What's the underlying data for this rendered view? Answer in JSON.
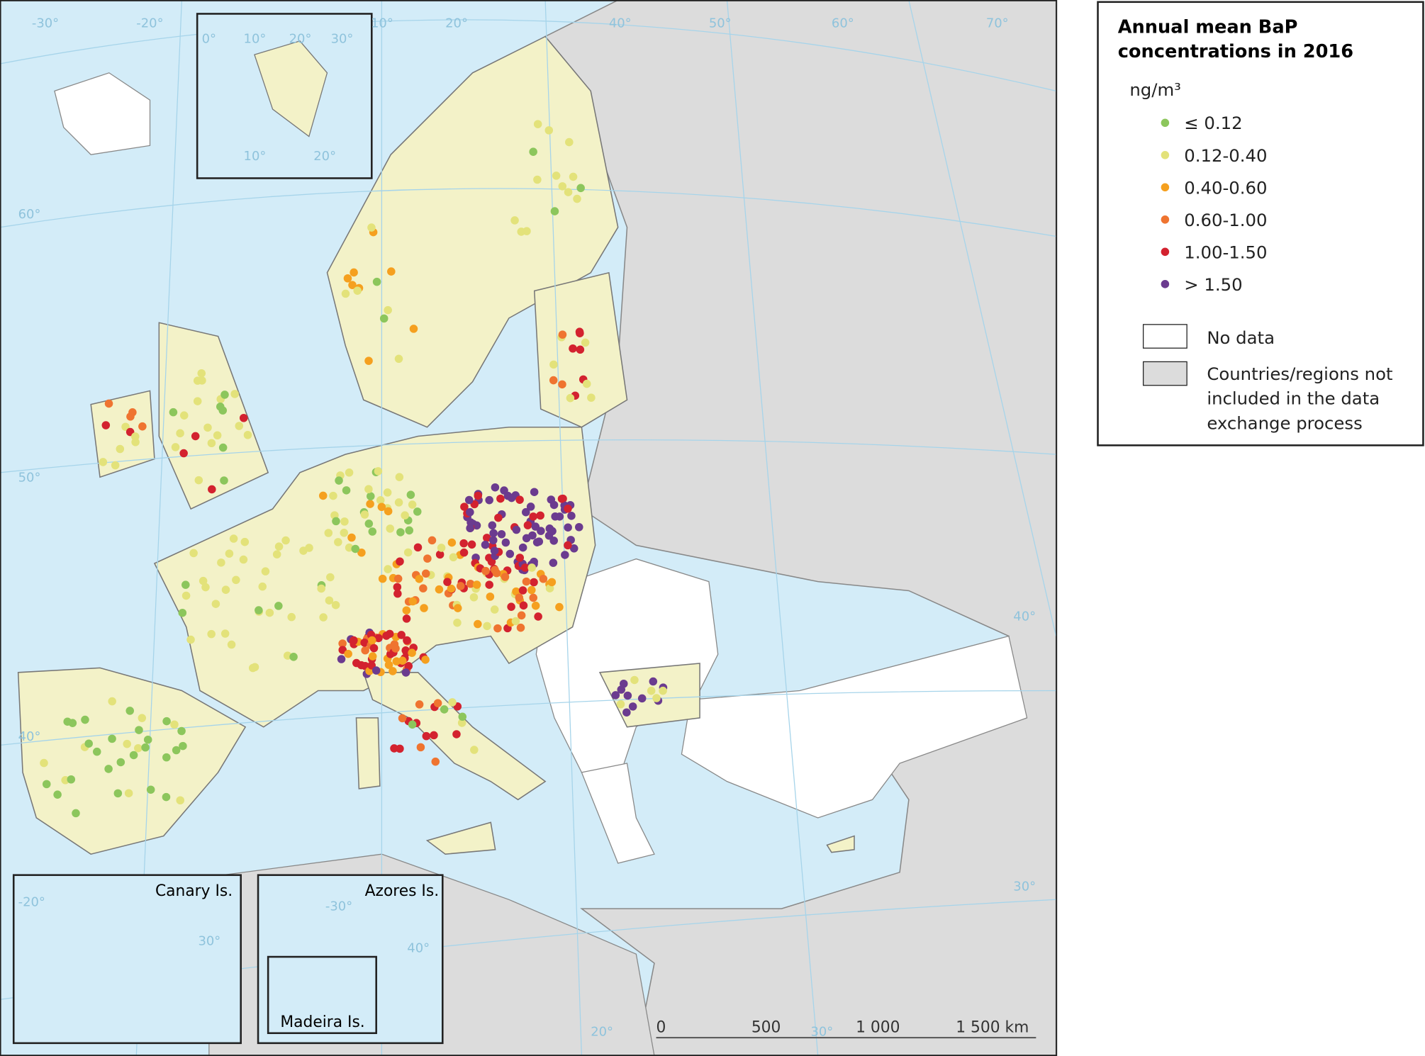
{
  "legend": {
    "title": [
      "Annual mean BaP",
      "concentrations in 2016"
    ],
    "unit": "ng/m³",
    "classes": [
      {
        "label": "≤ 0.12",
        "color": "#8cc65c"
      },
      {
        "label": "0.12-0.40",
        "color": "#e3e27a"
      },
      {
        "label": "0.40-0.60",
        "color": "#f5a01f"
      },
      {
        "label": "0.60-1.00",
        "color": "#ef7430"
      },
      {
        "label": "1.00-1.50",
        "color": "#d3222f"
      },
      {
        "label": "> 1.50",
        "color": "#6b3b8f"
      }
    ],
    "no_data": "No data",
    "not_included": [
      "Countries/regions not",
      "included in the data",
      "exchange process"
    ]
  },
  "insets": {
    "canary": "Canary Is.",
    "azores": "Azores Is.",
    "madeira": "Madeira Is."
  },
  "scale_bar": [
    "0",
    "500",
    "1 000",
    "1 500 km"
  ],
  "graticule_labels": [
    "-30°",
    "-20°",
    "10°",
    "20°",
    "40°",
    "50°",
    "60°",
    "70°",
    "60°",
    "50°",
    "40°",
    "40°",
    "30°",
    "20°",
    "30°",
    "0°",
    "10°",
    "20°",
    "30°",
    "10°",
    "20°",
    "-20°",
    "30°",
    "-30°",
    "40°"
  ]
}
